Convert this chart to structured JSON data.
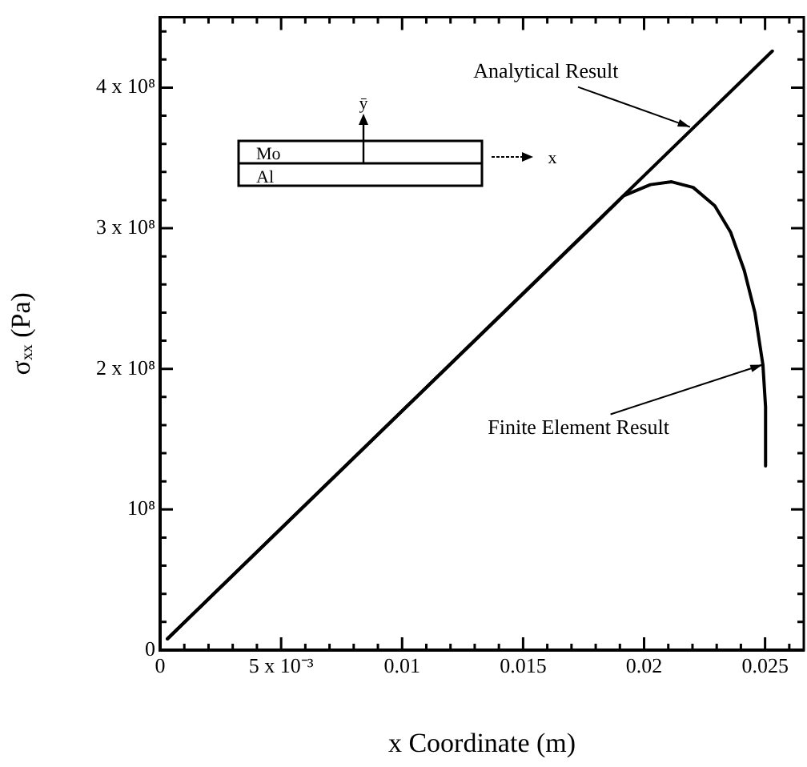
{
  "chart_data": {
    "type": "line",
    "xlabel": "x Coordinate (m)",
    "ylabel": "σₓₓ (Pa)",
    "xlim": [
      0,
      0.0266
    ],
    "ylim": [
      0,
      450000000
    ],
    "xticks": [
      0,
      {
        "value": 0.001,
        "label": null
      },
      {
        "value": 0.002,
        "label": null
      },
      {
        "value": 0.003,
        "label": null
      },
      {
        "value": 0.004,
        "label": null
      },
      {
        "value": 0.005,
        "label": "5 x 10⁻³"
      },
      {
        "value": 0.006,
        "label": null
      },
      {
        "value": 0.007,
        "label": null
      },
      {
        "value": 0.008,
        "label": null
      },
      {
        "value": 0.009,
        "label": null
      },
      0.01,
      {
        "value": 0.011,
        "label": null
      },
      {
        "value": 0.012,
        "label": null
      },
      {
        "value": 0.013,
        "label": null
      },
      {
        "value": 0.014,
        "label": null
      },
      0.015,
      {
        "value": 0.016,
        "label": null
      },
      {
        "value": 0.017,
        "label": null
      },
      {
        "value": 0.018,
        "label": null
      },
      {
        "value": 0.019,
        "label": null
      },
      0.02,
      {
        "value": 0.021,
        "label": null
      },
      {
        "value": 0.022,
        "label": null
      },
      {
        "value": 0.023,
        "label": null
      },
      {
        "value": 0.024,
        "label": null
      },
      0.025,
      {
        "value": 0.026,
        "label": null
      }
    ],
    "yticks": [
      0,
      {
        "value": 20000000,
        "label": null
      },
      {
        "value": 40000000,
        "label": null
      },
      {
        "value": 60000000,
        "label": null
      },
      {
        "value": 80000000,
        "label": null
      },
      {
        "value": 100000000,
        "label": "10⁸"
      },
      {
        "value": 120000000,
        "label": null
      },
      {
        "value": 140000000,
        "label": null
      },
      {
        "value": 160000000,
        "label": null
      },
      {
        "value": 180000000,
        "label": null
      },
      {
        "value": 200000000,
        "label": "2 x 10⁸"
      },
      {
        "value": 220000000,
        "label": null
      },
      {
        "value": 240000000,
        "label": null
      },
      {
        "value": 260000000,
        "label": null
      },
      {
        "value": 280000000,
        "label": null
      },
      {
        "value": 300000000,
        "label": "3 x 10⁸"
      },
      {
        "value": 320000000,
        "label": null
      },
      {
        "value": 340000000,
        "label": null
      },
      {
        "value": 360000000,
        "label": null
      },
      {
        "value": 380000000,
        "label": null
      },
      {
        "value": 400000000,
        "label": "4 x 10⁸"
      },
      {
        "value": 420000000,
        "label": null
      },
      {
        "value": 440000000,
        "label": null
      }
    ],
    "grid": false,
    "legend": false,
    "marker": "none",
    "line_style": "solid",
    "series": [
      {
        "color": "#000000",
        "x": [
          0.0003,
          0.0253
        ],
        "values": [
          8000000,
          426000000
        ]
      },
      {
        "color": "#000000",
        "x": [
          0.0003,
          0.01815,
          0.01915,
          0.02026,
          0.02114,
          0.02203,
          0.02292,
          0.02358,
          0.02414,
          0.02458,
          0.02491,
          0.02502,
          0.02502
        ],
        "values": [
          8000000,
          306000000,
          323000000,
          331000000,
          333000000,
          329000000,
          316000000,
          297000000,
          270000000,
          240000000,
          203000000,
          173000000,
          131000000
        ]
      }
    ],
    "annotations": [
      {
        "text": "Analytical Result",
        "x": 0.0219,
        "y": 372000000
      },
      {
        "text": "Finite Element Result",
        "x": 0.0249,
        "y": 203000000
      },
      "Mo",
      "Al",
      "ȳ",
      "x"
    ]
  }
}
